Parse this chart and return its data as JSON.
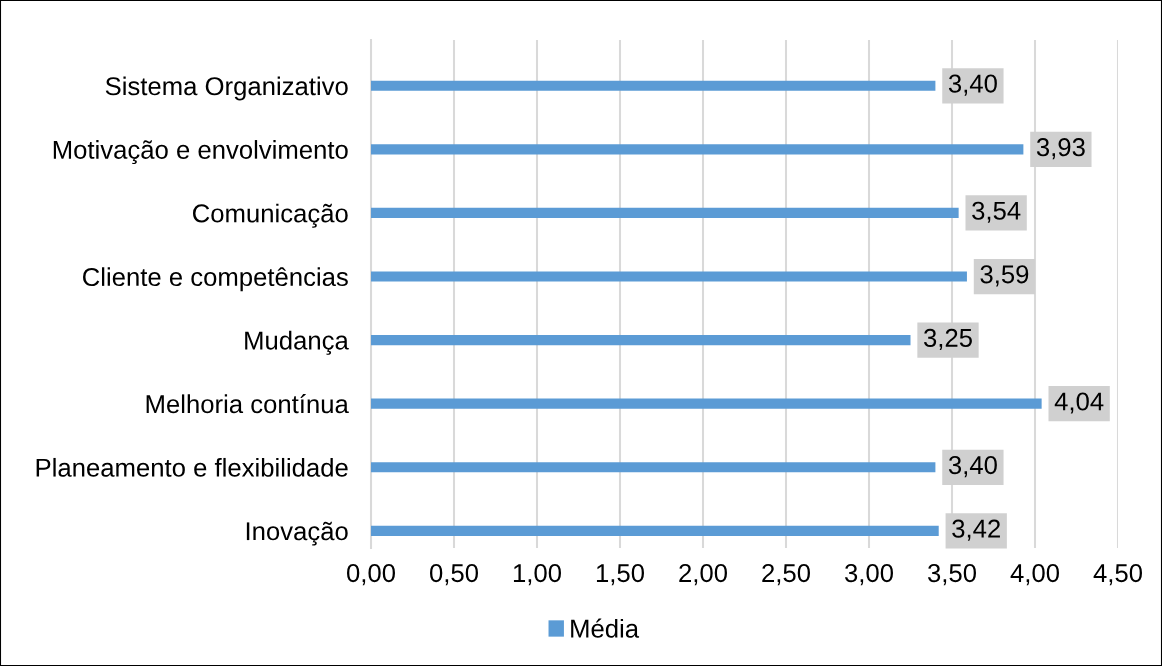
{
  "chart_data": {
    "type": "bar",
    "orientation": "horizontal",
    "categories": [
      "Sistema Organizativo",
      "Motivação e envolvimento",
      "Comunicação",
      "Cliente e competências",
      "Mudança",
      "Melhoria contínua",
      "Planeamento e flexibilidade",
      "Inovação"
    ],
    "series": [
      {
        "name": "Média",
        "color": "#5b9bd5",
        "values": [
          3.4,
          3.93,
          3.54,
          3.59,
          3.25,
          4.04,
          3.4,
          3.42
        ],
        "value_labels": [
          "3,40",
          "3,93",
          "3,54",
          "3,59",
          "3,25",
          "4,04",
          "3,40",
          "3,42"
        ]
      }
    ],
    "xlim": [
      0,
      4.5
    ],
    "xticks": [
      {
        "value": 0,
        "label": "0,00"
      },
      {
        "value": 0.5,
        "label": "0,50"
      },
      {
        "value": 1,
        "label": "1,00"
      },
      {
        "value": 1.5,
        "label": "1,50"
      },
      {
        "value": 2,
        "label": "2,00"
      },
      {
        "value": 2.5,
        "label": "2,50"
      },
      {
        "value": 3,
        "label": "3,00"
      },
      {
        "value": 3.5,
        "label": "3,50"
      },
      {
        "value": 4,
        "label": "4,00"
      },
      {
        "value": 4.5,
        "label": "4,50"
      }
    ],
    "grid": "x",
    "legend": "bottom"
  }
}
